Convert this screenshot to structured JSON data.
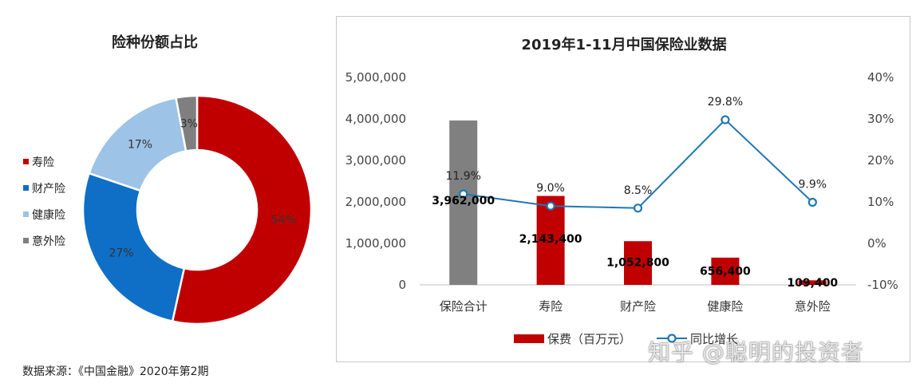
{
  "source_note": "数据来源：《中国金融》2020年第2期",
  "watermark": "知乎 @聪明的投资者",
  "chart_data": [
    {
      "type": "pie",
      "title": "险种份额占比",
      "legend_position": "left",
      "slices": [
        {
          "name": "寿险",
          "value": 54,
          "label": "54%",
          "color": "#c00000"
        },
        {
          "name": "财产险",
          "value": 27,
          "label": "27%",
          "color": "#0f6fc6"
        },
        {
          "name": "健康险",
          "value": 17,
          "label": "17%",
          "color": "#9dc3e6"
        },
        {
          "name": "意外险",
          "value": 3,
          "label": "3%",
          "color": "#7f7f7f"
        }
      ]
    },
    {
      "type": "bar",
      "title": "2019年1-11月中国保险业数据",
      "categories": [
        "保险合计",
        "寿险",
        "财产险",
        "健康险",
        "意外险"
      ],
      "ylim": [
        0,
        5000000
      ],
      "y_ticks": [
        "0",
        "1,000,000",
        "2,000,000",
        "3,000,000",
        "4,000,000",
        "5,000,000"
      ],
      "y2lim": [
        -10,
        40
      ],
      "y2_ticks": [
        "-10%",
        "0%",
        "10%",
        "20%",
        "30%",
        "40%"
      ],
      "legend_position": "bottom",
      "series": [
        {
          "name": "保费（百万元）",
          "type": "bar",
          "values": [
            3962000,
            2143400,
            1052800,
            656400,
            109400
          ],
          "labels": [
            "3,962,000",
            "2,143,400",
            "1,052,800",
            "656,400",
            "109,400"
          ],
          "colors": [
            "#808080",
            "#c00000",
            "#c00000",
            "#c00000",
            "#c00000"
          ],
          "legend_color": "#c00000"
        },
        {
          "name": "同比增长",
          "type": "line",
          "axis": "right",
          "values": [
            11.9,
            9.0,
            8.5,
            29.8,
            9.9
          ],
          "labels": [
            "11.9%",
            "9.0%",
            "8.5%",
            "29.8%",
            "9.9%"
          ],
          "color": "#1f77b4"
        }
      ]
    }
  ]
}
